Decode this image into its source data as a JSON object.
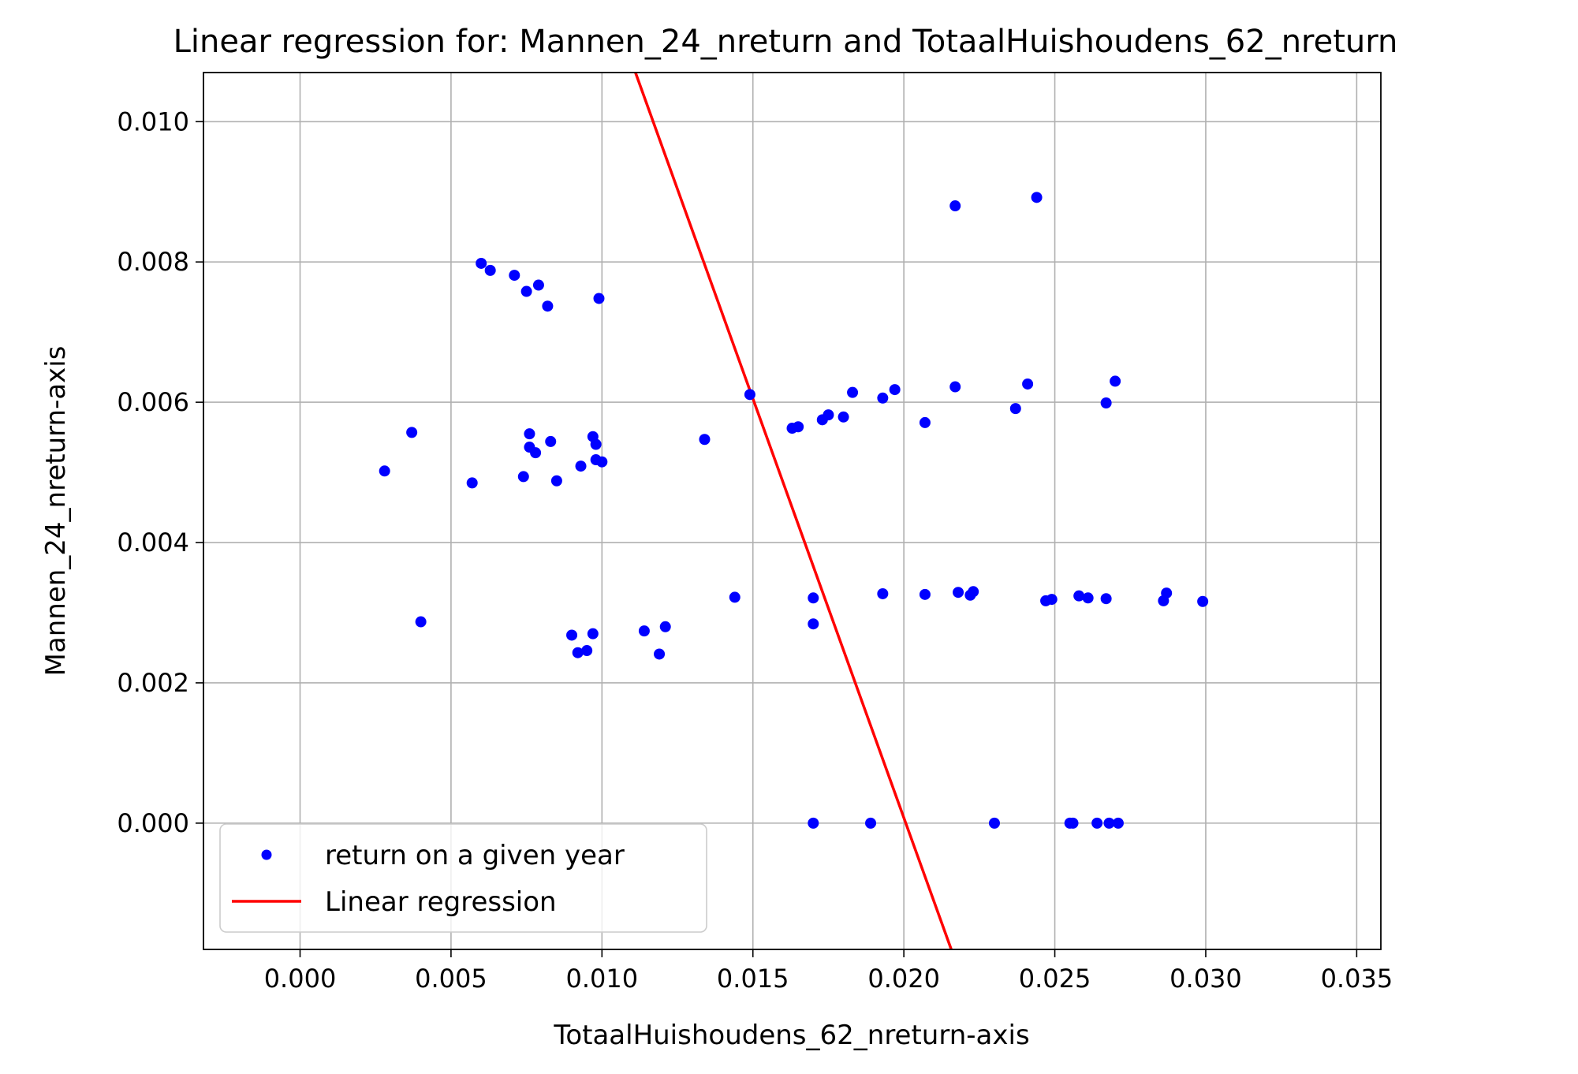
{
  "chart_data": {
    "type": "scatter",
    "title": "Linear regression for: Mannen_24_nreturn and TotaalHuishoudens_62_nreturn",
    "xlabel": "TotaalHuishoudens_62_nreturn-axis",
    "ylabel": "Mannen_24_nreturn-axis",
    "xlim": [
      -0.0032,
      0.0358
    ],
    "ylim": [
      -0.0018,
      0.0107
    ],
    "x_ticks": [
      0.0,
      0.005,
      0.01,
      0.015,
      0.02,
      0.025,
      0.03,
      0.035
    ],
    "x_tick_labels": [
      "0.000",
      "0.005",
      "0.010",
      "0.015",
      "0.020",
      "0.025",
      "0.030",
      "0.035"
    ],
    "y_ticks": [
      0.0,
      0.002,
      0.004,
      0.006,
      0.008,
      0.01
    ],
    "y_tick_labels": [
      "0.000",
      "0.002",
      "0.004",
      "0.006",
      "0.008",
      "0.010"
    ],
    "grid": true,
    "legend_position": "lower-left",
    "series": [
      {
        "name": "return on a given year",
        "kind": "scatter",
        "color": "#0000ff",
        "points": [
          [
            0.006,
            0.00798
          ],
          [
            0.0063,
            0.00788
          ],
          [
            0.0071,
            0.00781
          ],
          [
            0.0075,
            0.00758
          ],
          [
            0.0079,
            0.00767
          ],
          [
            0.0082,
            0.00737
          ],
          [
            0.0099,
            0.00748
          ],
          [
            0.0028,
            0.00502
          ],
          [
            0.0037,
            0.00557
          ],
          [
            0.0057,
            0.00485
          ],
          [
            0.0074,
            0.00494
          ],
          [
            0.0076,
            0.00555
          ],
          [
            0.0076,
            0.00536
          ],
          [
            0.0078,
            0.00528
          ],
          [
            0.0083,
            0.00544
          ],
          [
            0.0085,
            0.00488
          ],
          [
            0.0093,
            0.00509
          ],
          [
            0.0097,
            0.00551
          ],
          [
            0.0098,
            0.0054
          ],
          [
            0.0098,
            0.00518
          ],
          [
            0.01,
            0.00515
          ],
          [
            0.0134,
            0.00547
          ],
          [
            0.0149,
            0.00611
          ],
          [
            0.0163,
            0.00563
          ],
          [
            0.0165,
            0.00565
          ],
          [
            0.0173,
            0.00575
          ],
          [
            0.0175,
            0.00582
          ],
          [
            0.018,
            0.00579
          ],
          [
            0.0183,
            0.00614
          ],
          [
            0.0193,
            0.00606
          ],
          [
            0.0197,
            0.00618
          ],
          [
            0.0207,
            0.00571
          ],
          [
            0.0217,
            0.00622
          ],
          [
            0.0237,
            0.00591
          ],
          [
            0.0241,
            0.00626
          ],
          [
            0.0267,
            0.00599
          ],
          [
            0.027,
            0.0063
          ],
          [
            0.0217,
            0.0088
          ],
          [
            0.0244,
            0.00892
          ],
          [
            0.004,
            0.00287
          ],
          [
            0.009,
            0.00268
          ],
          [
            0.0092,
            0.00243
          ],
          [
            0.0095,
            0.00246
          ],
          [
            0.0097,
            0.0027
          ],
          [
            0.0114,
            0.00274
          ],
          [
            0.0119,
            0.00241
          ],
          [
            0.0121,
            0.0028
          ],
          [
            0.0144,
            0.00322
          ],
          [
            0.017,
            0.00321
          ],
          [
            0.017,
            0.00284
          ],
          [
            0.0193,
            0.00327
          ],
          [
            0.0207,
            0.00326
          ],
          [
            0.0218,
            0.00329
          ],
          [
            0.0222,
            0.00325
          ],
          [
            0.0223,
            0.0033
          ],
          [
            0.0247,
            0.00317
          ],
          [
            0.0249,
            0.00319
          ],
          [
            0.0258,
            0.00324
          ],
          [
            0.0261,
            0.00321
          ],
          [
            0.0267,
            0.0032
          ],
          [
            0.0286,
            0.00317
          ],
          [
            0.0287,
            0.00328
          ],
          [
            0.0299,
            0.00316
          ],
          [
            0.017,
            0.0
          ],
          [
            0.0189,
            0.0
          ],
          [
            0.023,
            0.0
          ],
          [
            0.0255,
            0.0
          ],
          [
            0.0256,
            0.0
          ],
          [
            0.0264,
            0.0
          ],
          [
            0.0268,
            0.0
          ],
          [
            0.0271,
            0.0
          ]
        ]
      },
      {
        "name": "Linear regression",
        "kind": "line",
        "color": "#ff0000",
        "points": [
          [
            0.01111,
            0.0107
          ],
          [
            0.02157,
            -0.0018
          ]
        ]
      }
    ]
  }
}
